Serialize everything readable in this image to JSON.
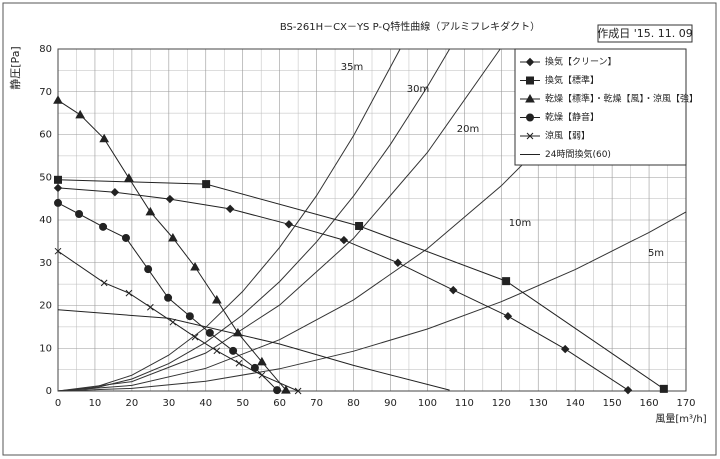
{
  "chart_data": {
    "type": "line",
    "title": "BS-261H－CX－YS P-Q特性曲線（アルミフレキダクト）",
    "date_label": "作成日 '15. 11. 09",
    "x_label": "風量[m³/h]",
    "y_label": "静圧[Pa]",
    "xlim": [
      0,
      170
    ],
    "ylim": [
      0,
      80
    ],
    "xticks": [
      0,
      10,
      20,
      30,
      40,
      50,
      60,
      70,
      80,
      90,
      100,
      110,
      120,
      130,
      140,
      150,
      160,
      170
    ],
    "yticks": [
      0,
      10,
      20,
      30,
      40,
      50,
      60,
      70,
      80
    ],
    "xminorticks": [
      5,
      15,
      25,
      35,
      45,
      55,
      65,
      75,
      85,
      95,
      105,
      115,
      125,
      135,
      145,
      155,
      165
    ],
    "yminorticks": [
      5,
      15,
      25,
      35,
      45,
      55,
      65,
      75
    ],
    "grid": true,
    "legend": "upper right",
    "series": [
      {
        "name": "換気【クリーン】",
        "color": "#222",
        "marker": "diamond",
        "x": [
          0,
          15.4,
          30.3,
          46.6,
          62.5,
          77.4,
          92,
          107,
          121.8,
          137.3,
          154.3
        ],
        "values": [
          47.5,
          46.5,
          44.9,
          42.6,
          39,
          35.3,
          30,
          23.6,
          17.5,
          9.8,
          0.2
        ]
      },
      {
        "name": "換気【標準】",
        "color": "#222",
        "marker": "square",
        "x": [
          0,
          40.1,
          81.5,
          121.3,
          164
        ],
        "values": [
          49.4,
          48.4,
          38.6,
          25.7,
          0.5
        ]
      },
      {
        "name": "乾燥【標準】・乾燥【風】・涼風【強】",
        "color": "#222",
        "marker": "triangle",
        "x": [
          0,
          6,
          12.5,
          19.2,
          25,
          31.1,
          37.1,
          43,
          48.7,
          55.2,
          61.7
        ],
        "values": [
          68,
          64.6,
          59,
          49.8,
          41.9,
          35.8,
          29,
          21.3,
          13.6,
          6.8,
          0.2
        ]
      },
      {
        "name": "乾燥【静音】",
        "color": "#222",
        "marker": "circle",
        "x": [
          0,
          5.7,
          12.2,
          18.4,
          24.4,
          29.8,
          35.7,
          41.1,
          47.4,
          53.3,
          59.3
        ],
        "values": [
          44,
          41.4,
          38.4,
          35.8,
          28.5,
          21.8,
          17.5,
          13.6,
          9.4,
          5.4,
          0.2
        ]
      },
      {
        "name": "涼風【弱】",
        "color": "#222",
        "marker": "x",
        "x": [
          0,
          12.5,
          19.2,
          25,
          31.1,
          37.1,
          43,
          49,
          55.2,
          65
        ],
        "values": [
          32.7,
          25.3,
          22.9,
          19.6,
          16.1,
          12.6,
          9.4,
          6.5,
          3.7,
          0
        ]
      },
      {
        "name": "24時間換気(60)",
        "color": "#222",
        "marker": "none",
        "x": [
          0,
          30,
          60,
          80,
          106
        ],
        "values": [
          19,
          17,
          11,
          6,
          0.2
        ]
      }
    ],
    "resistance_curves": [
      {
        "name": "35m",
        "x": [
          0,
          10,
          20,
          30,
          40,
          50,
          60,
          70,
          80,
          92.6
        ],
        "values": [
          0,
          0.9,
          3.7,
          8.4,
          14.9,
          23.3,
          33.6,
          45.7,
          59.7,
          80
        ]
      },
      {
        "name": "30m",
        "x": [
          0,
          10,
          20,
          30,
          40,
          50,
          60,
          70,
          80,
          90,
          100,
          106
        ],
        "values": [
          0,
          0.7,
          2.8,
          6.4,
          11.4,
          17.8,
          25.6,
          34.9,
          45.6,
          57.7,
          71.2,
          80
        ]
      },
      {
        "name": "20m",
        "x": [
          0,
          20,
          40,
          60,
          80,
          100,
          119.7
        ],
        "values": [
          0,
          2.2,
          8.9,
          20.1,
          35.7,
          55.8,
          80
        ]
      },
      {
        "name": "10m",
        "x": [
          0,
          20,
          40,
          60,
          80,
          100,
          120,
          140,
          155
        ],
        "values": [
          0,
          1.3,
          5.3,
          12,
          21.3,
          33.3,
          48,
          65.3,
          80
        ]
      },
      {
        "name": "5m",
        "x": [
          0,
          20,
          40,
          60,
          80,
          100,
          120,
          140,
          160,
          170
        ],
        "values": [
          0,
          0.6,
          2.3,
          5.2,
          9.3,
          14.5,
          20.9,
          28.4,
          37.1,
          41.9
        ]
      }
    ]
  }
}
